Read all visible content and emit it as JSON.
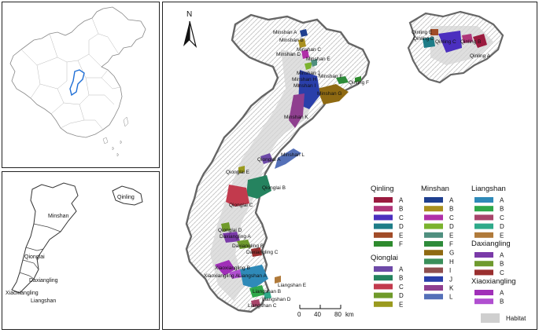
{
  "north_label": "N",
  "scale": {
    "ticks": [
      "0",
      "40",
      "80"
    ],
    "unit": "km"
  },
  "inset_region_labels": {
    "minshan": "Minshan",
    "qinling": "Qinling",
    "qionglai": "Qionglai",
    "daxiangling": "Daxiangling",
    "xiaoxiangling": "Xiaoxiangling",
    "liangshan": "Liangshan"
  },
  "legend": {
    "groups": [
      {
        "title": "Qinling",
        "items": [
          {
            "label": "A",
            "color": "#9b1b3f"
          },
          {
            "label": "B",
            "color": "#b0367a"
          },
          {
            "label": "C",
            "color": "#4b2fbf"
          },
          {
            "label": "D",
            "color": "#1e7d88"
          },
          {
            "label": "E",
            "color": "#a14b27"
          },
          {
            "label": "F",
            "color": "#2e8b2e"
          }
        ]
      },
      {
        "title": "Qionglai",
        "items": [
          {
            "label": "A",
            "color": "#6e4aa8"
          },
          {
            "label": "B",
            "color": "#25835f"
          },
          {
            "label": "C",
            "color": "#c23a4d"
          },
          {
            "label": "D",
            "color": "#6f9a2a"
          },
          {
            "label": "E",
            "color": "#9a9a1e"
          }
        ]
      },
      {
        "title": "Minshan",
        "items": [
          {
            "label": "A",
            "color": "#1f3f8f"
          },
          {
            "label": "B",
            "color": "#a9901f"
          },
          {
            "label": "C",
            "color": "#b02fa8"
          },
          {
            "label": "D",
            "color": "#7bb32e"
          },
          {
            "label": "E",
            "color": "#4f8f7f"
          },
          {
            "label": "F",
            "color": "#2e8b3a"
          },
          {
            "label": "G",
            "color": "#8f6a12"
          },
          {
            "label": "H",
            "color": "#3a8f5a"
          },
          {
            "label": "I",
            "color": "#8f4f4f"
          },
          {
            "label": "J",
            "color": "#2a3faa"
          },
          {
            "label": "K",
            "color": "#8f3f8f"
          },
          {
            "label": "L",
            "color": "#5470b8"
          }
        ]
      },
      {
        "title": "Liangshan",
        "items": [
          {
            "label": "A",
            "color": "#2f8ab8"
          },
          {
            "label": "B",
            "color": "#2fa84a"
          },
          {
            "label": "C",
            "color": "#a8456a"
          },
          {
            "label": "D",
            "color": "#2faa8a"
          },
          {
            "label": "E",
            "color": "#b07a3a"
          }
        ]
      },
      {
        "title": "Daxiangling",
        "items": [
          {
            "label": "A",
            "color": "#7a3aa8"
          },
          {
            "label": "B",
            "color": "#6f9a2f"
          },
          {
            "label": "C",
            "color": "#9a2f2f"
          }
        ]
      },
      {
        "title": "Xiaoxiangling",
        "items": [
          {
            "label": "A",
            "color": "#a02fb8"
          },
          {
            "label": "B",
            "color": "#b04fd0"
          }
        ]
      }
    ],
    "habitat": {
      "label": "Habitat",
      "color": "#cfcfcf"
    }
  },
  "map_labels": [
    "Minshan A",
    "Minshan B",
    "Minshan C",
    "Minshan D",
    "Minshan E",
    "Minshan F",
    "Minshan G",
    "Minshan H",
    "Minshan I",
    "Minshan J",
    "Minshan K",
    "Minshan L",
    "Qinling F",
    "Qinling A",
    "Qinling B",
    "Qinling C",
    "Qinling D",
    "Qinling E",
    "Qionglai A",
    "Qionglai B",
    "Qionglai C",
    "Qionglai D",
    "Qionglai E",
    "Daxiangling A",
    "Daxiangling B",
    "Daxiangling C",
    "Xiaoxiangling A",
    "Xiaoxiangling B",
    "Liangshan A",
    "Liangshan B",
    "Liangshan C",
    "Liangshan D",
    "Liangshan E"
  ]
}
